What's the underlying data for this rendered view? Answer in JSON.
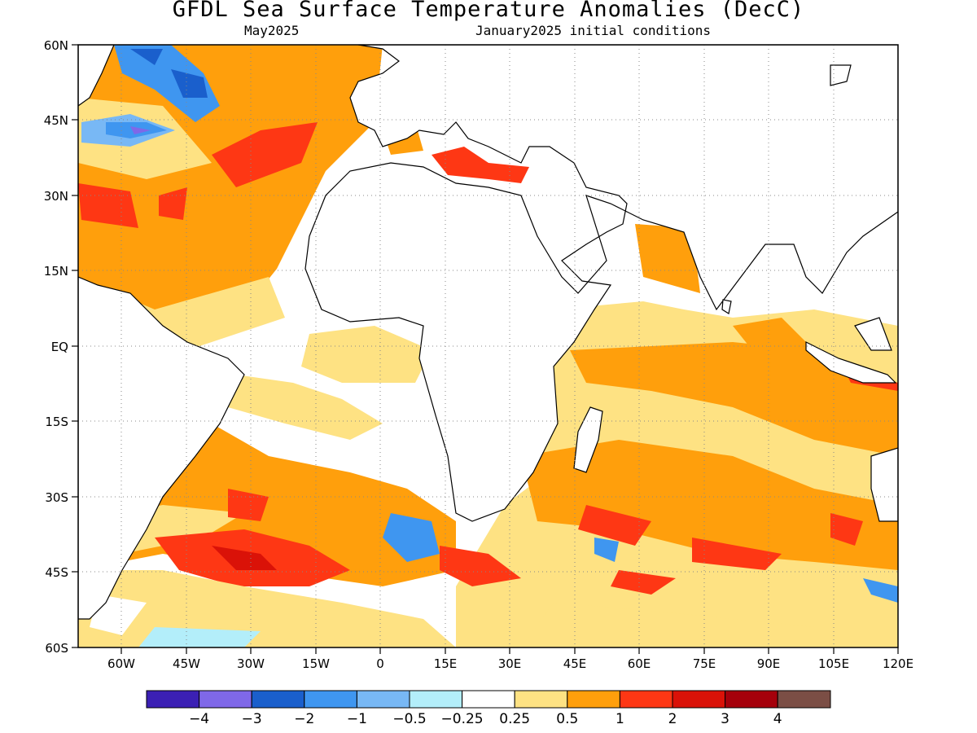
{
  "title": "GFDL Sea Surface Temperature Anomalies (DecC)",
  "subtitle_left": "May2025",
  "subtitle_right": "January2025 initial conditions",
  "lat_labels": [
    "60N",
    "45N",
    "30N",
    "15N",
    "EQ",
    "15S",
    "30S",
    "45S",
    "60S"
  ],
  "lon_labels": [
    "60W",
    "45W",
    "30W",
    "15W",
    "0",
    "15E",
    "30E",
    "45E",
    "60E",
    "75E",
    "90E",
    "105E",
    "120E"
  ],
  "colorbar": {
    "colors": [
      "#3b20b4",
      "#7f68e8",
      "#1a5fcc",
      "#3f96f0",
      "#78b8f5",
      "#b3eefa",
      "#ffffff",
      "#fee283",
      "#ff9f0c",
      "#fe3714",
      "#da1208",
      "#a5000b",
      "#7b4e45"
    ],
    "labels": [
      "−4",
      "−3",
      "−2",
      "−1",
      "−0.5",
      "−0.25",
      "0.25",
      "0.5",
      "1",
      "2",
      "3",
      "4"
    ]
  },
  "map_data": {
    "projection": "equirectangular",
    "lon_range": [
      -70,
      120
    ],
    "lat_range": [
      -60,
      60
    ],
    "gridlines": "dotted",
    "variable": "Sea surface temperature anomaly",
    "units": "DecC"
  }
}
